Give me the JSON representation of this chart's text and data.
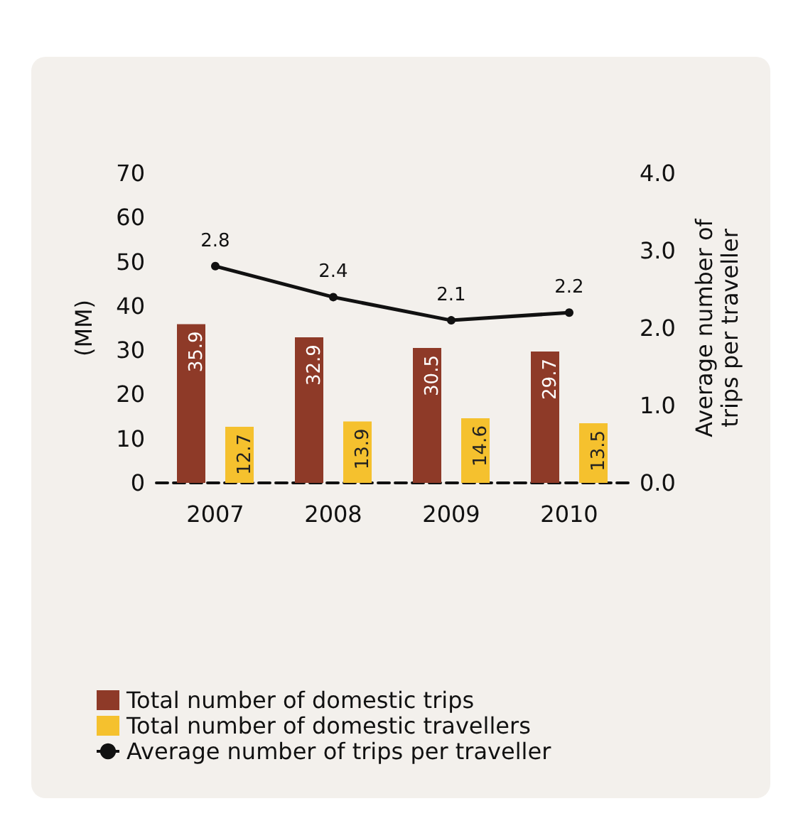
{
  "chart_data": {
    "type": "bar",
    "categories": [
      "2007",
      "2008",
      "2009",
      "2010"
    ],
    "series": [
      {
        "name": "Total number of domestic trips",
        "color": "#8e3a28",
        "values": [
          35.9,
          32.9,
          30.5,
          29.7
        ]
      },
      {
        "name": "Total number of domestic travellers",
        "color": "#f5c12e",
        "values": [
          12.7,
          13.9,
          14.6,
          13.5
        ]
      },
      {
        "name": "Average number of trips per traveller",
        "type": "line",
        "axis": "y2",
        "color": "#111111",
        "values": [
          2.8,
          2.4,
          2.1,
          2.2
        ]
      }
    ],
    "ylabel": "(MM)",
    "y2label": "Average number of\ntrips per traveller",
    "ylim": [
      0,
      70
    ],
    "yticks": [
      0,
      10,
      20,
      30,
      40,
      50,
      60,
      70
    ],
    "y2lim": [
      0,
      4
    ],
    "y2ticks": [
      {
        "value": 0,
        "label": "0.0"
      },
      {
        "value": 1,
        "label": "1.0"
      },
      {
        "value": 2,
        "label": "2.0"
      },
      {
        "value": 3,
        "label": "3.0"
      },
      {
        "value": 4,
        "label": "4.0"
      }
    ],
    "data_labels": true,
    "grid": false,
    "legend": "bottom",
    "marker": "circle",
    "line_style": "solid"
  }
}
